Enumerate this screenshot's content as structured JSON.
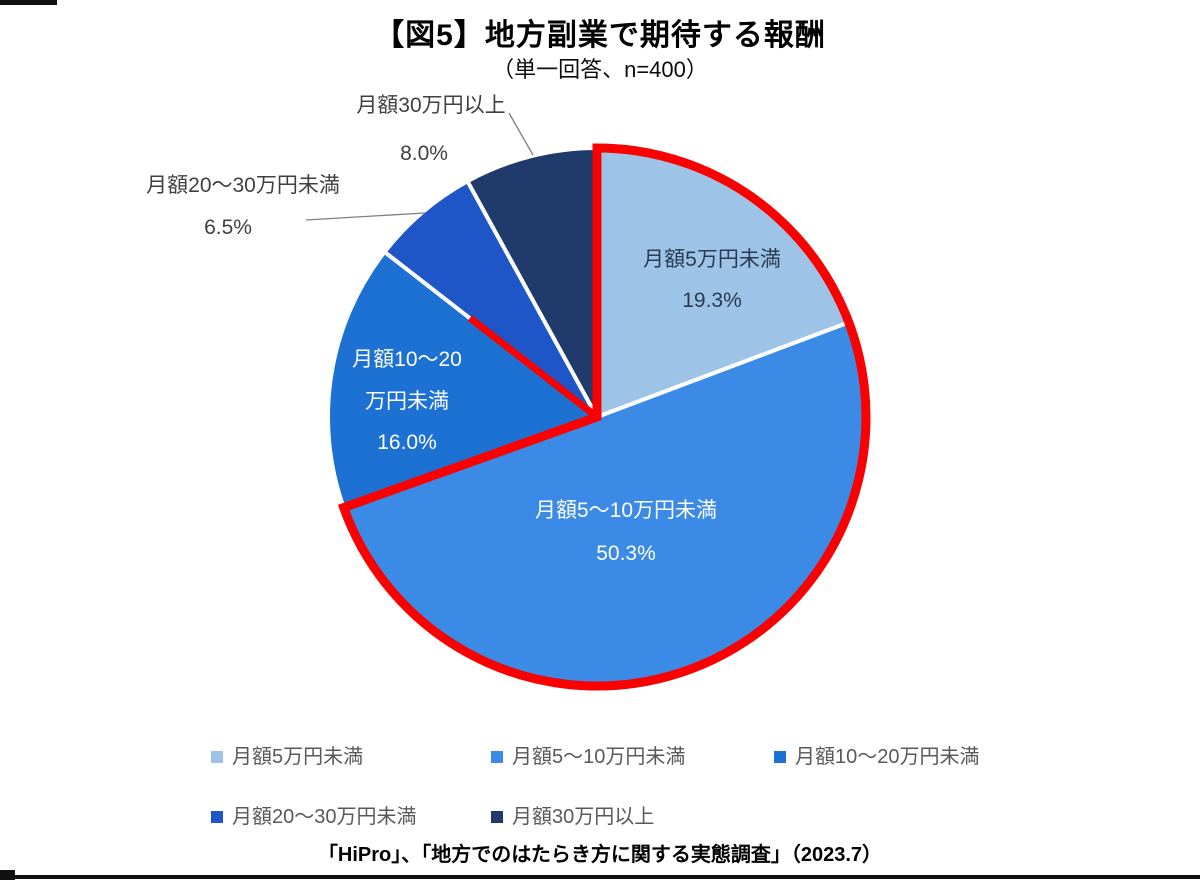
{
  "header": {
    "title": "【図5】地方副業で期待する報酬",
    "subtitle": "（単一回答、n=400）"
  },
  "footer": {
    "source": "「HiPro」、「地方でのはたらき方に関する実態調査」（2023.7）"
  },
  "chart_data": {
    "type": "pie",
    "title": "【図5】地方副業で期待する報酬",
    "sample_note": "単一回答、n=400",
    "unit": "%",
    "categories": [
      "月額5万円未満",
      "月額5～10万円未満",
      "月額10～20万円未満",
      "月額20～30万円未満",
      "月額30万円以上"
    ],
    "values": [
      19.3,
      50.3,
      16.0,
      6.5,
      8.0
    ],
    "colors": [
      "#9DC3E6",
      "#3A8AE6",
      "#1C71D2",
      "#1E56C8",
      "#1F3A6B"
    ],
    "start_angle_deg": 0,
    "direction": "clockwise",
    "highlight_outline": {
      "slice_indexes": [
        0,
        1
      ],
      "color": "#FA0000",
      "width": 9
    },
    "highlight_spur": [
      470,
      318
    ],
    "labels": [
      {
        "placement": "inside",
        "lines": [
          "月額5万円未満",
          "19.3%"
        ],
        "positions": [
          [
            712,
            266
          ],
          [
            712,
            307
          ]
        ],
        "color": "#2A3A52"
      },
      {
        "placement": "inside",
        "lines": [
          "月額5～10万円未満",
          "50.3%"
        ],
        "positions": [
          [
            626,
            517
          ],
          [
            626,
            560
          ]
        ],
        "color": "#FFFFFF"
      },
      {
        "placement": "inside",
        "lines": [
          "月額10～20",
          "万円未満",
          "16.0%"
        ],
        "positions": [
          [
            407,
            366
          ],
          [
            407,
            408
          ],
          [
            407,
            449
          ]
        ],
        "color": "#FFFFFF"
      },
      {
        "placement": "outside",
        "lines": [
          "月額20～30万円未満",
          "6.5%"
        ],
        "positions": [
          [
            243,
            192
          ],
          [
            228,
            234
          ]
        ],
        "color": "#404040",
        "leader": [
          [
            306,
            220
          ],
          [
            425,
            213
          ]
        ]
      },
      {
        "placement": "outside",
        "lines": [
          "月額30万円以上",
          "8.0%"
        ],
        "positions": [
          [
            431,
            112
          ],
          [
            424,
            160
          ]
        ],
        "color": "#404040",
        "leader": [
          [
            509,
            113
          ],
          [
            533,
            155
          ]
        ]
      }
    ],
    "legend_rows": [
      [
        0,
        1,
        2
      ],
      [
        3,
        4
      ]
    ],
    "legend_position": "bottom",
    "grid": false
  }
}
